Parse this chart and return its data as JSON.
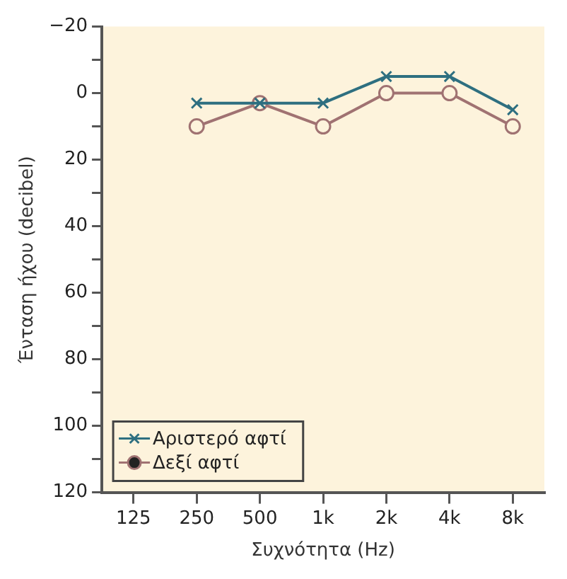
{
  "chart_data": {
    "type": "line",
    "xlabel": "Συχνότητα (Hz)",
    "ylabel": "Ένταση ήχου (decibel)",
    "categories": [
      "125",
      "250",
      "500",
      "1k",
      "2k",
      "4k",
      "8k"
    ],
    "series": [
      {
        "name": "Αριστερό αφτί",
        "color": "#2e6f80",
        "marker": "cross",
        "values": [
          null,
          3,
          3,
          3,
          -5,
          -5,
          5
        ]
      },
      {
        "name": "Δεξί αφτί",
        "color": "#a07272",
        "marker": "circle",
        "values": [
          null,
          10,
          3,
          10,
          0,
          0,
          10
        ]
      }
    ],
    "ylim": [
      120,
      -20
    ],
    "yticks": [
      -20,
      {
        "value": -10,
        "label": null
      },
      0,
      {
        "value": 10,
        "label": null
      },
      20,
      {
        "value": 30,
        "label": null
      },
      40,
      {
        "value": 50,
        "label": null
      },
      60,
      {
        "value": 70,
        "label": null
      },
      80,
      {
        "value": 90,
        "label": null
      },
      100,
      {
        "value": 110,
        "label": null
      },
      120
    ],
    "grid": false,
    "legend": "bottom left"
  }
}
